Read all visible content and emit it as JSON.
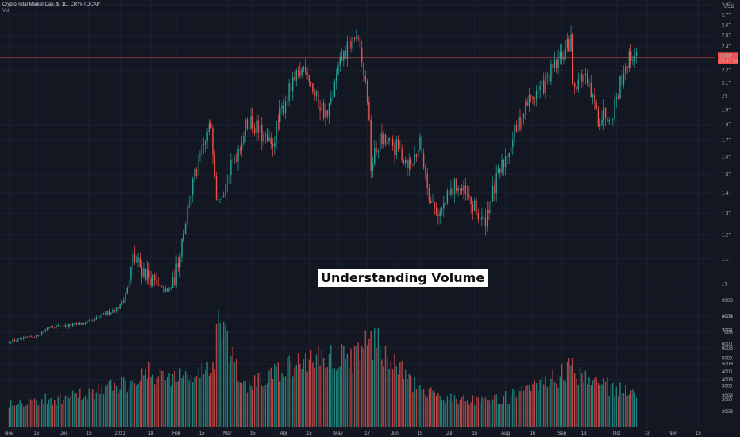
{
  "header": {
    "title": "Crypto Total Market Cap, $, 1D, CRYPTOCAP",
    "indicator": "Vol"
  },
  "overlay": {
    "text": "Understanding Volume"
  },
  "colors": {
    "background": "#131722",
    "up": "#26a69a",
    "down": "#ef5350",
    "grid": "#1c2030",
    "price_line": "#ef5350",
    "price_label_bg": "#ef5350"
  },
  "chart_data": {
    "type": "candlestick",
    "title": "Crypto Total Market Cap, $, 1D, CRYPTOCAP",
    "x_ticks": [
      "Nov",
      "16",
      "Dec",
      "15",
      "2021",
      "18",
      "Feb",
      "15",
      "Mar",
      "15",
      "Apr",
      "15",
      "May",
      "17",
      "Jun",
      "15",
      "Jul",
      "15",
      "Aug",
      "16",
      "Sep",
      "13",
      "Oct",
      "18",
      "Nov",
      "15"
    ],
    "price_ticks": [
      "2.8T",
      "2.7T",
      "2.6T",
      "2.5T",
      "2.4T",
      "2.3T",
      "2.2T",
      "2.1T",
      "2T",
      "1.9T",
      "1.8T",
      "1.7T",
      "1.6T",
      "1.5T",
      "1.4T",
      "1.3T",
      "1.2T",
      "1.1T",
      "1T",
      "900B",
      "800B",
      "700B",
      "600B",
      "500B",
      "400B",
      "300B",
      "200B"
    ],
    "volume_ticks": [
      "8000",
      "7000",
      "6000",
      "5000",
      "4000",
      "3000",
      "2000"
    ],
    "currency_label": "USD",
    "last_price_label": "2.30T",
    "last_price_countdown": "09:47:34",
    "last_price": 2.306,
    "price_range": [
      0.38,
      2.85
    ],
    "volume_range": [
      0,
      8800
    ],
    "price_series": [
      {
        "date": "2020-11-01",
        "close": 0.4
      },
      {
        "date": "2020-11-16",
        "close": 0.46
      },
      {
        "date": "2020-11-24",
        "close": 0.57
      },
      {
        "date": "2020-12-01",
        "close": 0.56
      },
      {
        "date": "2020-12-15",
        "close": 0.6
      },
      {
        "date": "2021-01-01",
        "close": 0.77
      },
      {
        "date": "2021-01-08",
        "close": 1.1
      },
      {
        "date": "2021-01-18",
        "close": 1.02
      },
      {
        "date": "2021-01-27",
        "close": 0.92
      },
      {
        "date": "2021-02-01",
        "close": 1.05
      },
      {
        "date": "2021-02-10",
        "close": 1.45
      },
      {
        "date": "2021-02-20",
        "close": 1.8
      },
      {
        "date": "2021-02-23",
        "close": 1.4
      },
      {
        "date": "2021-02-28",
        "close": 1.44
      },
      {
        "date": "2021-03-13",
        "close": 1.84
      },
      {
        "date": "2021-03-25",
        "close": 1.65
      },
      {
        "date": "2021-04-02",
        "close": 1.98
      },
      {
        "date": "2021-04-13",
        "close": 2.25
      },
      {
        "date": "2021-04-18",
        "close": 2.0
      },
      {
        "date": "2021-04-25",
        "close": 1.85
      },
      {
        "date": "2021-05-03",
        "close": 2.3
      },
      {
        "date": "2021-05-11",
        "close": 2.5
      },
      {
        "date": "2021-05-17",
        "close": 2.0
      },
      {
        "date": "2021-05-19",
        "close": 1.55
      },
      {
        "date": "2021-05-24",
        "close": 1.7
      },
      {
        "date": "2021-06-02",
        "close": 1.65
      },
      {
        "date": "2021-06-10",
        "close": 1.55
      },
      {
        "date": "2021-06-15",
        "close": 1.68
      },
      {
        "date": "2021-06-21",
        "close": 1.35
      },
      {
        "date": "2021-06-26",
        "close": 1.3
      },
      {
        "date": "2021-07-05",
        "close": 1.45
      },
      {
        "date": "2021-07-20",
        "close": 1.25
      },
      {
        "date": "2021-08-01",
        "close": 1.6
      },
      {
        "date": "2021-08-13",
        "close": 1.95
      },
      {
        "date": "2021-08-23",
        "close": 2.1
      },
      {
        "date": "2021-09-06",
        "close": 2.45
      },
      {
        "date": "2021-09-07",
        "close": 2.1
      },
      {
        "date": "2021-09-13",
        "close": 2.15
      },
      {
        "date": "2021-09-21",
        "close": 1.85
      },
      {
        "date": "2021-09-29",
        "close": 1.9
      },
      {
        "date": "2021-10-06",
        "close": 2.25
      },
      {
        "date": "2021-10-10",
        "close": 2.34
      },
      {
        "date": "2021-10-12",
        "close": 2.3
      }
    ],
    "volume_series": [
      {
        "date": "2020-11-01",
        "value": 1900
      },
      {
        "date": "2020-12-01",
        "value": 2100
      },
      {
        "date": "2021-01-05",
        "value": 3300
      },
      {
        "date": "2021-01-11",
        "value": 4000
      },
      {
        "date": "2021-02-08",
        "value": 3700
      },
      {
        "date": "2021-02-22",
        "value": 4600
      },
      {
        "date": "2021-02-23",
        "value": 7900
      },
      {
        "date": "2021-03-10",
        "value": 2900
      },
      {
        "date": "2021-04-18",
        "value": 5200
      },
      {
        "date": "2021-05-12",
        "value": 5200
      },
      {
        "date": "2021-05-19",
        "value": 6600
      },
      {
        "date": "2021-06-15",
        "value": 2600
      },
      {
        "date": "2021-07-20",
        "value": 1800
      },
      {
        "date": "2021-08-15",
        "value": 2700
      },
      {
        "date": "2021-09-07",
        "value": 4300
      },
      {
        "date": "2021-09-21",
        "value": 3300
      },
      {
        "date": "2021-10-12",
        "value": 2400
      }
    ]
  }
}
